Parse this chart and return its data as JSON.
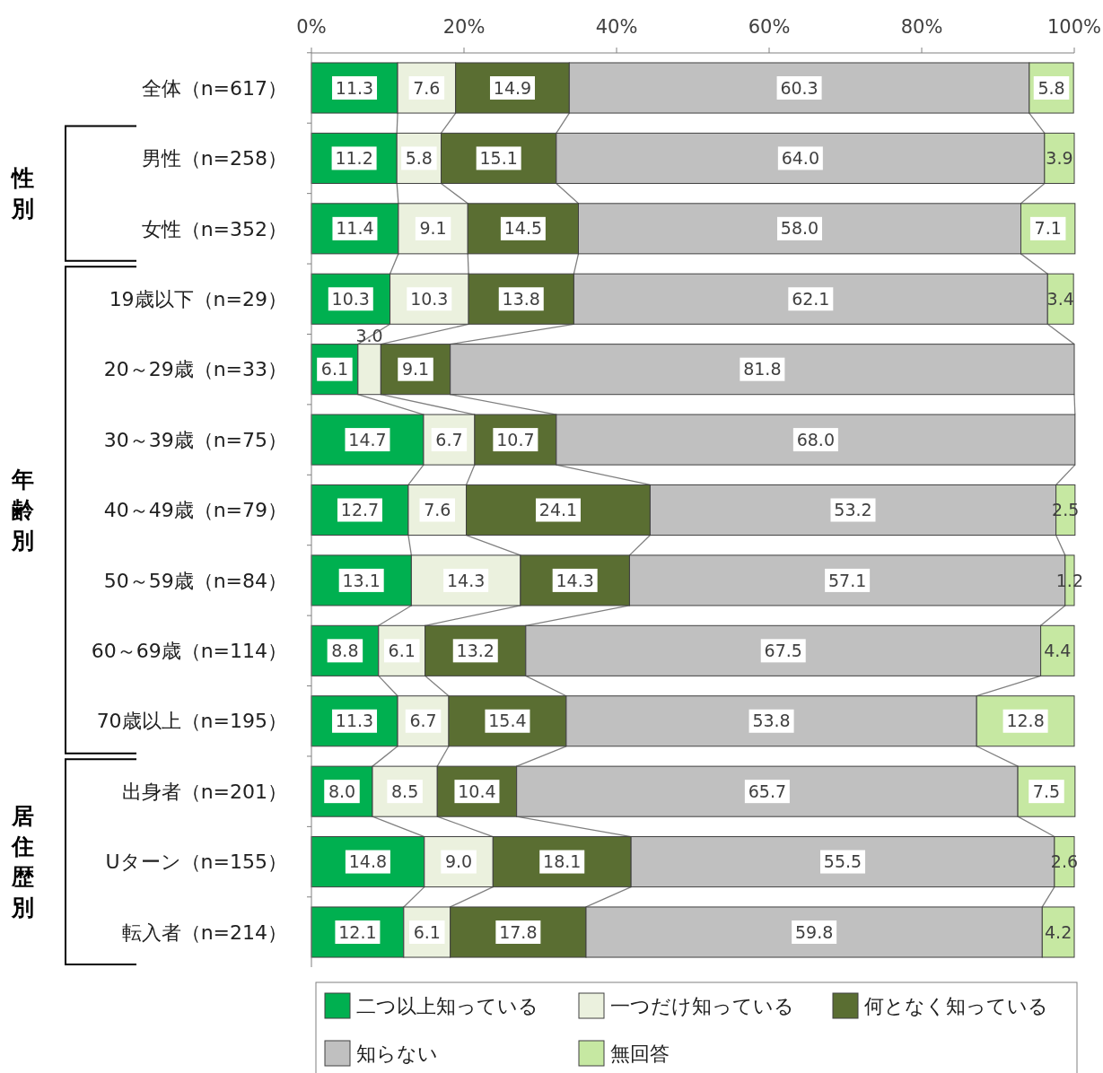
{
  "chart_data": {
    "type": "bar",
    "orientation": "horizontal",
    "stacked": true,
    "categories": [
      "全体（n=617）",
      "男性（n=258）",
      "女性（n=352）",
      "19歳以下（n=29）",
      "20～29歳（n=33）",
      "30～39歳（n=75）",
      "40～49歳（n=79）",
      "50～59歳（n=84）",
      "60～69歳（n=114）",
      "70歳以上（n=195）",
      "出身者（n=201）",
      "Uターン（n=155）",
      "転入者（n=214）"
    ],
    "series": [
      {
        "name": "二つ以上知っている",
        "color": "#00b050",
        "values": [
          11.3,
          11.2,
          11.4,
          10.3,
          6.1,
          14.7,
          12.7,
          13.1,
          8.8,
          11.3,
          8.0,
          14.8,
          12.1
        ],
        "value_labels": [
          "11.3",
          "11.2",
          "11.4",
          "10.3",
          "6.1",
          "14.7",
          "12.7",
          "13.1",
          "8.8",
          "11.3",
          "8.0",
          "14.8",
          "12.1"
        ]
      },
      {
        "name": "一つだけ知っている",
        "color": "#ebf1de",
        "values": [
          7.6,
          5.8,
          9.1,
          10.3,
          3.0,
          6.7,
          7.6,
          14.3,
          6.1,
          6.7,
          8.5,
          9.0,
          6.1
        ],
        "value_labels": [
          "7.6",
          "5.8",
          "9.1",
          "10.3",
          "3.0",
          "6.7",
          "7.6",
          "14.3",
          "6.1",
          "6.7",
          "8.5",
          "9.0",
          "6.1"
        ]
      },
      {
        "name": "何となく知っている",
        "color": "#5a6e32",
        "values": [
          14.9,
          15.1,
          14.5,
          13.8,
          9.1,
          10.7,
          24.1,
          14.3,
          13.2,
          15.4,
          10.4,
          18.1,
          17.8
        ],
        "value_labels": [
          "14.9",
          "15.1",
          "14.5",
          "13.8",
          "9.1",
          "10.7",
          "24.1",
          "14.3",
          "13.2",
          "15.4",
          "10.4",
          "18.1",
          "17.8"
        ]
      },
      {
        "name": "知らない",
        "color": "#c0c0c0",
        "values": [
          60.3,
          64.0,
          58.0,
          62.1,
          81.8,
          68.0,
          53.2,
          57.1,
          67.5,
          53.8,
          65.7,
          55.5,
          59.8
        ],
        "value_labels": [
          "60.3",
          "64.0",
          "58.0",
          "62.1",
          "81.8",
          "68.0",
          "53.2",
          "57.1",
          "67.5",
          "53.8",
          "65.7",
          "55.5",
          "59.8"
        ]
      },
      {
        "name": "無回答",
        "color": "#c6e8a2",
        "values": [
          5.8,
          3.9,
          7.1,
          3.4,
          null,
          null,
          2.5,
          1.2,
          4.4,
          12.8,
          7.5,
          2.6,
          4.2
        ],
        "value_labels": [
          "5.8",
          "3.9",
          "7.1",
          "3.4",
          null,
          null,
          "2.5",
          "1.2",
          "4.4",
          "12.8",
          "7.5",
          "2.6",
          "4.2"
        ]
      }
    ],
    "xlim": [
      0,
      100
    ],
    "xticks": [
      {
        "value": 0,
        "label": "0%"
      },
      {
        "value": 20,
        "label": "20%"
      },
      {
        "value": 40,
        "label": "40%"
      },
      {
        "value": 60,
        "label": "60%"
      },
      {
        "value": 80,
        "label": "80%"
      },
      {
        "value": 100,
        "label": "100%"
      }
    ],
    "annotations": [
      "性別",
      "年齢別",
      "居住歴別"
    ],
    "grid": false,
    "legend": "bottom"
  }
}
